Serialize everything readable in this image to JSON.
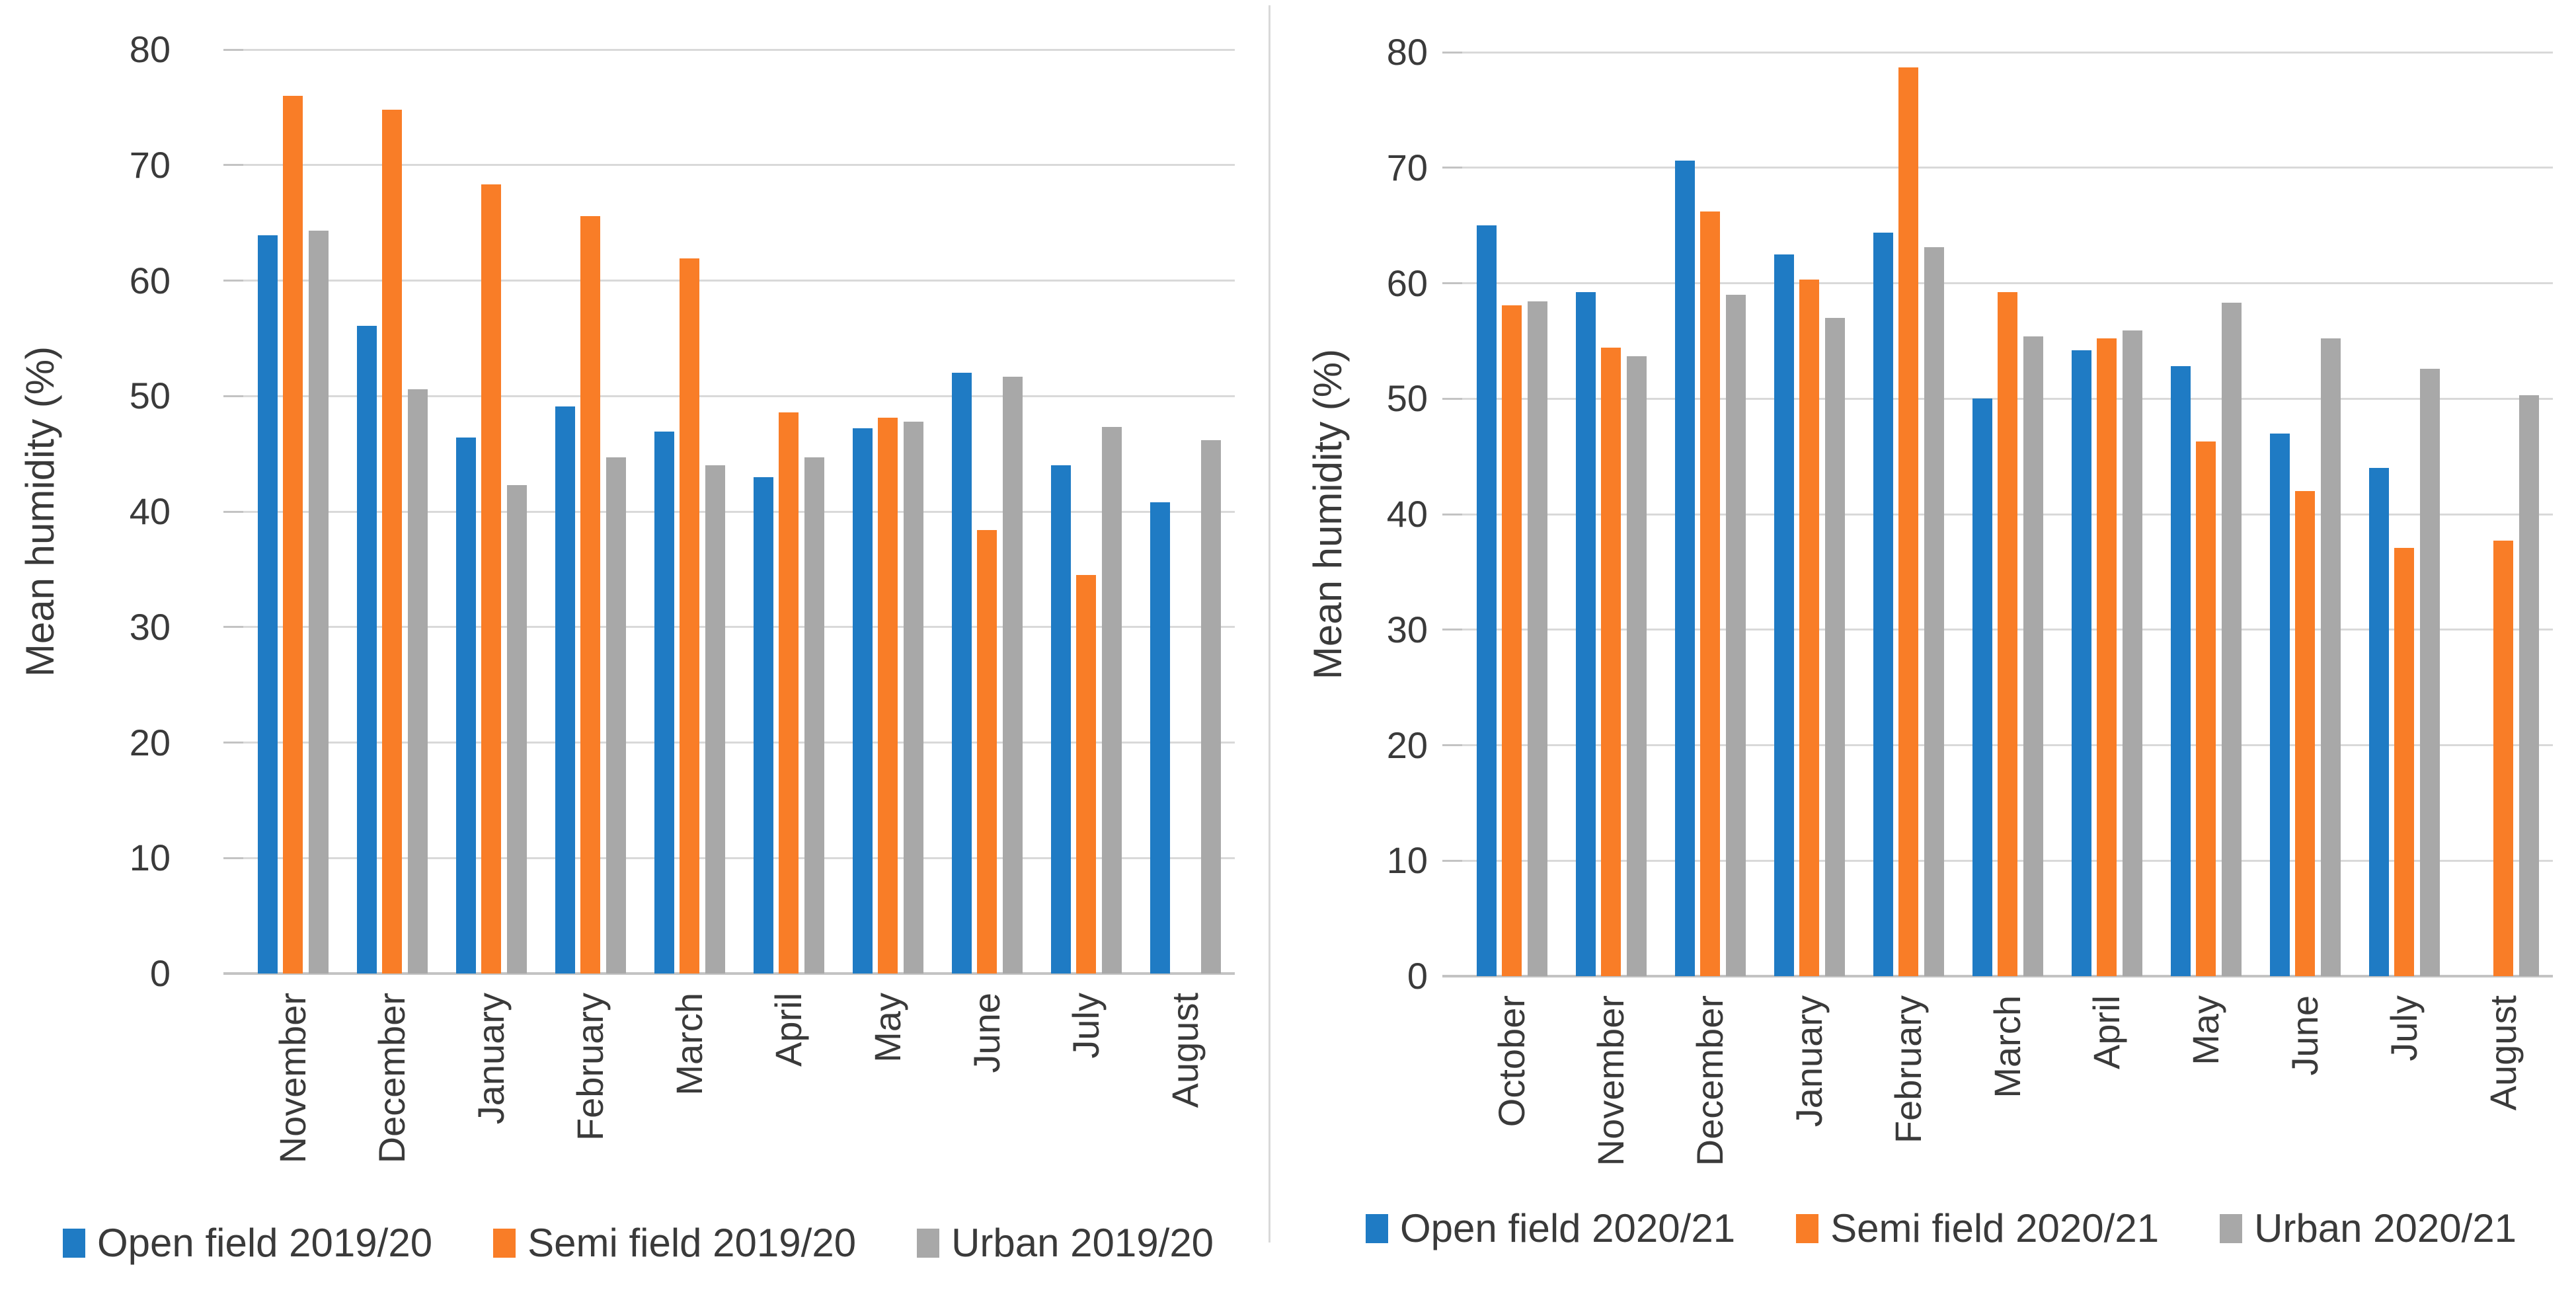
{
  "figure": {
    "background": "#ffffff",
    "divider_color": "#d9d9d9"
  },
  "colors": {
    "open_field": "#1f7bc4",
    "semi_field": "#f97d27",
    "urban": "#a8a8a8",
    "gridline": "#d9d9d9",
    "axis_line": "#c3c3c3",
    "text": "#3a3a3a"
  },
  "chart_data": [
    {
      "type": "bar",
      "title": "",
      "ylabel": "Mean humidity (%)",
      "xlabel": "",
      "ylim": [
        0,
        80
      ],
      "yticks": [
        0,
        10,
        20,
        30,
        40,
        50,
        60,
        70,
        80
      ],
      "grid": true,
      "legend_position": "bottom",
      "categories": [
        "November",
        "December",
        "January",
        "February",
        "March",
        "April",
        "May",
        "June",
        "July",
        "August"
      ],
      "series": [
        {
          "name": "Open field 2019/20",
          "color_key": "open_field",
          "values": [
            63.9,
            56.1,
            46.4,
            49.1,
            46.9,
            43.0,
            47.2,
            52.0,
            44.0,
            40.8
          ]
        },
        {
          "name": "Semi field 2019/20",
          "color_key": "semi_field",
          "values": [
            76.0,
            74.8,
            68.3,
            65.6,
            61.9,
            48.6,
            48.1,
            38.4,
            34.5,
            null
          ]
        },
        {
          "name": "Urban 2019/20",
          "color_key": "urban",
          "values": [
            64.3,
            50.6,
            42.3,
            44.7,
            44.0,
            44.7,
            47.8,
            51.7,
            47.3,
            46.2
          ]
        }
      ]
    },
    {
      "type": "bar",
      "title": "",
      "ylabel": "Mean humidity (%)",
      "xlabel": "",
      "ylim": [
        0,
        80
      ],
      "yticks": [
        0,
        10,
        20,
        30,
        40,
        50,
        60,
        70,
        80
      ],
      "grid": true,
      "legend_position": "bottom",
      "categories": [
        "October",
        "November",
        "December",
        "January",
        "February",
        "March",
        "April",
        "May",
        "June",
        "July",
        "August"
      ],
      "series": [
        {
          "name": "Open field 2020/21",
          "color_key": "open_field",
          "values": [
            65.0,
            59.2,
            70.6,
            62.5,
            64.4,
            50.0,
            54.2,
            52.8,
            47.0,
            44.0,
            null
          ]
        },
        {
          "name": "Semi field 2020/21",
          "color_key": "semi_field",
          "values": [
            58.1,
            54.4,
            66.2,
            60.3,
            78.7,
            59.2,
            55.2,
            46.3,
            42.0,
            37.1,
            37.7
          ]
        },
        {
          "name": "Urban 2020/21",
          "color_key": "urban",
          "values": [
            58.4,
            53.7,
            59.0,
            57.0,
            63.1,
            55.4,
            55.9,
            58.3,
            55.2,
            52.6,
            50.3
          ]
        }
      ]
    }
  ]
}
